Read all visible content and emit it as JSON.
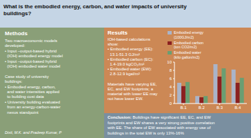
{
  "chart_data": {
    "type": "bar",
    "title": "What is the embodied energy, carbon, and water impacts of university\nbuildings?",
    "categories": [
      "B.1",
      "B.2",
      "B.3",
      "B.4"
    ],
    "series": [
      {
        "name": "Embodied energy\n(100GJ/m2)",
        "color": "#aab4c8",
        "values": [
          5,
          1.8,
          9.5,
          8.2
        ]
      },
      {
        "name": "Embodied carbon\n(ton CO2/m2)",
        "color": "#8b2020",
        "values": [
          4.2,
          1.5,
          6.5,
          5.0
        ]
      },
      {
        "name": "Embodied water\n(kilo gallon/m2)",
        "color": "#6a9e72",
        "values": [
          5.2,
          1.8,
          8.5,
          6.2
        ]
      }
    ],
    "ylim": [
      0,
      10
    ],
    "yticks": [
      0,
      2,
      4,
      6,
      8,
      10
    ],
    "grid": false,
    "legend": "top",
    "annotations": [
      "Methods",
      "Two macroeconomic models\ndeveloped:\n• Input –output-based hybrid\n  (IOH) embodied energy model\n• Input –output-based hybrid\n  (IOH) embodied water model\n\nCase study of university\nbuildings:\n• Embodied energy, carbon,\n  and water intensities applied\n  to building cost data\n• University building evaluated\n  from an energy-carbon-water\n  nexus standpoint",
      "Dixit, M.K. and Pradeep Kumar, P",
      "Results",
      "IOH-based calculations\nshow:\n• Embodied energy (EE):\n  13.1-51.3 GJ/m²\n• Embodied carbon (EC):\n  1.4-19.0 kgCO₂/m²\n• Embodied water (EW):\n  2.8-12.9 kgal/m²\n\nMaterials have varying EE,\nEC, and EW footprints; a\nmaterial with lower EE may\nnot have lower EW.",
      "Conclusion:",
      " Buildings have significant EE, EC, and EW\nfootprints and EW shares a very strong positive correlation\nwith EE. The share of EW associated with energy use of\nbuildings in the total EW is only 13%-16%"
    ]
  }
}
